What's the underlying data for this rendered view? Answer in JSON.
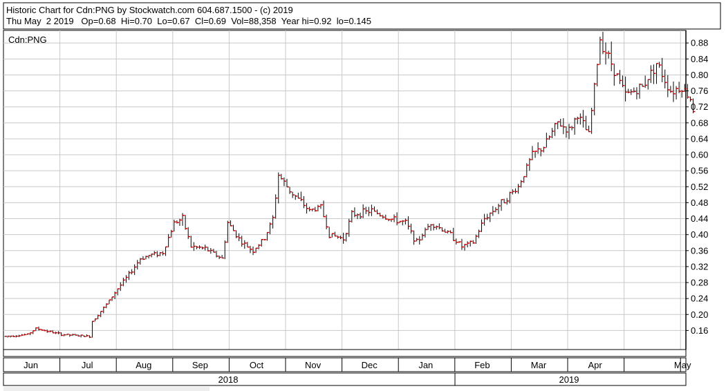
{
  "header": {
    "line1": "Historic Chart for Cdn:PNG by Stockwatch.com 604.687.1500 - (c) 2019",
    "line2": "Thu May  2 2019   Op=0.68  Hi=0.70  Lo=0.67  Cl=0.69  Vol=88,358  Year hi=0.92  lo=0.145"
  },
  "colors": {
    "bar": "#000000",
    "close_tick": "#cc0000",
    "grid": "#c8c8c8",
    "frame": "#000000"
  },
  "chart_data": {
    "type": "ohlc",
    "title": "Cdn:PNG",
    "y_ticks": [
      0.16,
      0.2,
      0.24,
      0.28,
      0.32,
      0.36,
      0.4,
      0.44,
      0.48,
      0.52,
      0.56,
      0.6,
      0.64,
      0.68,
      0.72,
      0.76,
      0.8,
      0.84,
      0.88
    ],
    "y_tick_labels": [
      "0.16",
      "0.20",
      "0.24",
      "0.28",
      "0.32",
      "0.36",
      "0.40",
      "0.44",
      "0.48",
      "0.52",
      "0.56",
      "0.60",
      "0.64",
      "0.68",
      "0.72",
      "0.76",
      "0.80",
      "0.84",
      "0.88"
    ],
    "ylim": [
      0.12,
      0.92
    ],
    "x_month_labels": [
      "May",
      "Jun",
      "Jul",
      "Aug",
      "Sep",
      "Oct",
      "Nov",
      "Dec",
      "Jan",
      "Feb",
      "Mar",
      "Apr",
      "May"
    ],
    "x_month_index": [
      0,
      1,
      2,
      3,
      4,
      5,
      6,
      7,
      8,
      9,
      10,
      11,
      12
    ],
    "x_year_labels": [
      "2018",
      "2019"
    ],
    "grid": true,
    "price_path": [
      {
        "m": 0.0,
        "v": 0.145
      },
      {
        "m": 0.4,
        "v": 0.15
      },
      {
        "m": 0.55,
        "v": 0.165
      },
      {
        "m": 1.0,
        "v": 0.15
      },
      {
        "m": 1.5,
        "v": 0.145
      },
      {
        "m": 1.53,
        "v": 0.18
      },
      {
        "m": 1.8,
        "v": 0.225
      },
      {
        "m": 2.0,
        "v": 0.265
      },
      {
        "m": 2.2,
        "v": 0.3
      },
      {
        "m": 2.4,
        "v": 0.34
      },
      {
        "m": 2.6,
        "v": 0.35
      },
      {
        "m": 2.8,
        "v": 0.355
      },
      {
        "m": 3.0,
        "v": 0.43
      },
      {
        "m": 3.15,
        "v": 0.44
      },
      {
        "m": 3.3,
        "v": 0.37
      },
      {
        "m": 3.55,
        "v": 0.365
      },
      {
        "m": 3.85,
        "v": 0.34
      },
      {
        "m": 3.95,
        "v": 0.43
      },
      {
        "m": 4.2,
        "v": 0.38
      },
      {
        "m": 4.4,
        "v": 0.36
      },
      {
        "m": 4.6,
        "v": 0.39
      },
      {
        "m": 4.75,
        "v": 0.44
      },
      {
        "m": 4.85,
        "v": 0.55
      },
      {
        "m": 5.05,
        "v": 0.51
      },
      {
        "m": 5.4,
        "v": 0.46
      },
      {
        "m": 5.6,
        "v": 0.47
      },
      {
        "m": 5.75,
        "v": 0.4
      },
      {
        "m": 6.0,
        "v": 0.39
      },
      {
        "m": 6.15,
        "v": 0.45
      },
      {
        "m": 6.5,
        "v": 0.46
      },
      {
        "m": 6.8,
        "v": 0.44
      },
      {
        "m": 7.1,
        "v": 0.43
      },
      {
        "m": 7.3,
        "v": 0.38
      },
      {
        "m": 7.55,
        "v": 0.43
      },
      {
        "m": 7.9,
        "v": 0.4
      },
      {
        "m": 8.1,
        "v": 0.37
      },
      {
        "m": 8.3,
        "v": 0.38
      },
      {
        "m": 8.5,
        "v": 0.44
      },
      {
        "m": 8.8,
        "v": 0.48
      },
      {
        "m": 9.1,
        "v": 0.52
      },
      {
        "m": 9.35,
        "v": 0.6
      },
      {
        "m": 9.55,
        "v": 0.62
      },
      {
        "m": 9.8,
        "v": 0.68
      },
      {
        "m": 10.0,
        "v": 0.66
      },
      {
        "m": 10.15,
        "v": 0.7
      },
      {
        "m": 10.35,
        "v": 0.65
      },
      {
        "m": 10.55,
        "v": 0.89
      },
      {
        "m": 10.75,
        "v": 0.83
      },
      {
        "m": 11.0,
        "v": 0.75
      },
      {
        "m": 11.3,
        "v": 0.77
      },
      {
        "m": 11.55,
        "v": 0.83
      },
      {
        "m": 11.8,
        "v": 0.76
      },
      {
        "m": 12.0,
        "v": 0.77
      },
      {
        "m": 12.15,
        "v": 0.74
      },
      {
        "m": 12.25,
        "v": 0.69
      }
    ]
  },
  "footer": {
    "blank_panel_label": ""
  }
}
